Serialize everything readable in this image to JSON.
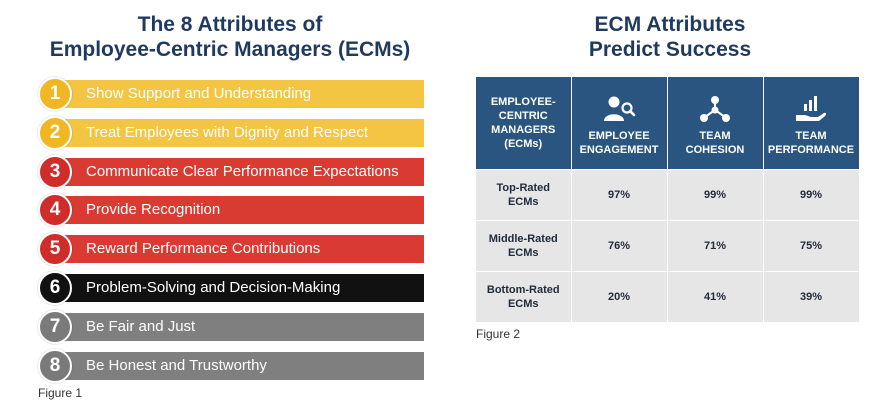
{
  "left": {
    "title_line1": "The 8 Attributes of",
    "title_line2": "Employee-Centric Managers (ECMs)",
    "caption": "Figure 1",
    "attributes": [
      {
        "num": "1",
        "label": "Show Support and Understanding",
        "bar_color": "#f4c542",
        "circle_color": "#f0b722",
        "text_color": "#ffffff"
      },
      {
        "num": "2",
        "label": "Treat Employees with Dignity and Respect",
        "bar_color": "#f4c542",
        "circle_color": "#f0b722",
        "text_color": "#ffffff"
      },
      {
        "num": "3",
        "label": "Communicate Clear Performance Expectations",
        "bar_color": "#d93a32",
        "circle_color": "#d02d2a",
        "text_color": "#ffffff"
      },
      {
        "num": "4",
        "label": "Provide Recognition",
        "bar_color": "#d93a32",
        "circle_color": "#d02d2a",
        "text_color": "#ffffff"
      },
      {
        "num": "5",
        "label": "Reward Performance Contributions",
        "bar_color": "#d93a32",
        "circle_color": "#d02d2a",
        "text_color": "#ffffff"
      },
      {
        "num": "6",
        "label": "Problem-Solving and Decision-Making",
        "bar_color": "#111111",
        "circle_color": "#111111",
        "text_color": "#ffffff"
      },
      {
        "num": "7",
        "label": "Be Fair and Just",
        "bar_color": "#7f7f7f",
        "circle_color": "#7a7a7a",
        "text_color": "#ffffff"
      },
      {
        "num": "8",
        "label": "Be Honest and Trustworthy",
        "bar_color": "#7f7f7f",
        "circle_color": "#7a7a7a",
        "text_color": "#ffffff"
      }
    ]
  },
  "right": {
    "title_line1": "ECM Attributes",
    "title_line2": "Predict Success",
    "caption": "Figure 2",
    "header": {
      "col0": [
        "EMPLOYEE-",
        "CENTRIC",
        "MANAGERS",
        "(ECMs)"
      ],
      "col1": [
        "EMPLOYEE",
        "ENGAGEMENT"
      ],
      "col2": [
        "TEAM",
        "COHESION"
      ],
      "col3": [
        "TEAM",
        "PERFORMANCE"
      ],
      "col1_icon": "person-search-icon",
      "col2_icon": "network-icon",
      "col3_icon": "hand-chart-icon"
    },
    "rows": [
      {
        "label": [
          "Top-Rated",
          "ECMs"
        ],
        "engagement": "97%",
        "cohesion": "99%",
        "performance": "99%"
      },
      {
        "label": [
          "Middle-Rated",
          "ECMs"
        ],
        "engagement": "76%",
        "cohesion": "71%",
        "performance": "75%"
      },
      {
        "label": [
          "Bottom-Rated",
          "ECMs"
        ],
        "engagement": "20%",
        "cohesion": "41%",
        "performance": "39%"
      }
    ],
    "header_color": "#2a5580",
    "cell_color": "#e6e6e6"
  }
}
